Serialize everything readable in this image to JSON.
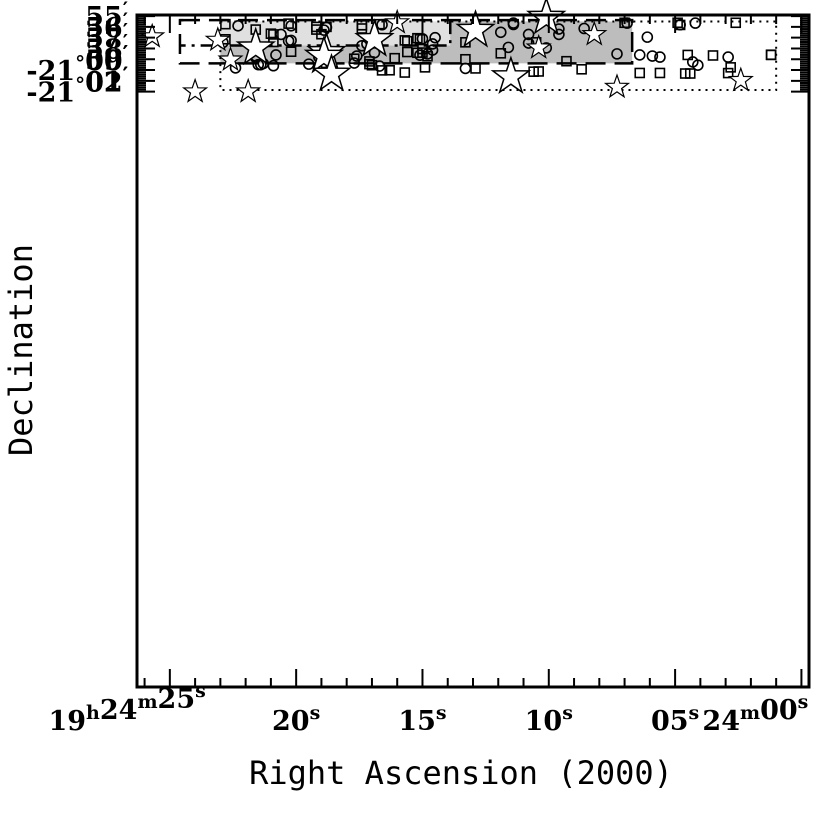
{
  "chart_data": {
    "type": "scatter",
    "xlabel": "Right Ascension (2000)",
    "ylabel": "Declination",
    "xlim": [
      26.3,
      -0.3
    ],
    "ylim": [
      62.15,
      -0.1
    ],
    "x_ticks": [
      {
        "value": 25,
        "h": "19",
        "m": "24",
        "s": "25"
      },
      {
        "value": 20,
        "s": "20"
      },
      {
        "value": 15,
        "s": "15"
      },
      {
        "value": 10,
        "s": "10"
      },
      {
        "value": 5,
        "s": "05"
      },
      {
        "value": 0,
        "m": "24",
        "s": "00"
      }
    ],
    "x_units": {
      "h": "h",
      "m": "m",
      "s": "s"
    },
    "y_ticks": [
      {
        "value": 0,
        "label": "55"
      },
      {
        "value": 1,
        "label": "56"
      },
      {
        "value": 2,
        "label": "57"
      },
      {
        "value": 3,
        "label": "58"
      },
      {
        "value": 4,
        "label": "59"
      },
      {
        "value": 5,
        "deg": "-21",
        "label": "00"
      },
      {
        "value": 6,
        "label": "01"
      },
      {
        "value": 7,
        "deg": "-21",
        "label": "02"
      }
    ],
    "y_units": {
      "deg": "°",
      "min": "′"
    },
    "regions": [
      {
        "name": "dark",
        "x": [
          23.0,
          6.7
        ],
        "y": [
          0.5,
          4.38
        ],
        "fill": "#bdbdbd",
        "edges": "dashed"
      },
      {
        "name": "light",
        "x": [
          23.0,
          13.9
        ],
        "y": [
          0.5,
          2.73
        ],
        "fill": "#e0e0e0",
        "edges": "dashdot"
      }
    ],
    "outlines": [
      {
        "name": "dashed",
        "x": [
          24.6,
          6.7
        ],
        "y": [
          0.38,
          4.38
        ],
        "style": "dashed"
      },
      {
        "name": "dotted",
        "x": [
          23.0,
          1.0
        ],
        "y": [
          0.5,
          6.85
        ],
        "style": "dotted"
      }
    ],
    "series": [
      {
        "marker": "circle",
        "points": [
          [
            22.3,
            0.9
          ],
          [
            20.2,
            0.9
          ],
          [
            18.8,
            1.05
          ],
          [
            18.9,
            1.3
          ],
          [
            16.6,
            0.8
          ],
          [
            11.4,
            0.65
          ],
          [
            11.4,
            0.78
          ],
          [
            4.2,
            0.65
          ],
          [
            6.9,
            0.65
          ],
          [
            4.8,
            0.8
          ],
          [
            9.6,
            1.2
          ],
          [
            8.6,
            1.15
          ],
          [
            11.9,
            1.5
          ],
          [
            10.8,
            1.7
          ],
          [
            9.6,
            1.7
          ],
          [
            6.1,
            1.95
          ],
          [
            20.6,
            1.7
          ],
          [
            20.3,
            2.3
          ],
          [
            20.2,
            2.25
          ],
          [
            15.0,
            2.1
          ],
          [
            14.5,
            2.0
          ],
          [
            14.6,
            2.58
          ],
          [
            17.2,
            2.58
          ],
          [
            17.4,
            2.75
          ],
          [
            22.9,
            2.45
          ],
          [
            10.8,
            2.5
          ],
          [
            11.6,
            2.9
          ],
          [
            10.1,
            2.95
          ],
          [
            14.6,
            3.15
          ],
          [
            15.1,
            3.62
          ],
          [
            14.8,
            3.5
          ],
          [
            16.9,
            3.4
          ],
          [
            21.6,
            3.7
          ],
          [
            20.8,
            3.6
          ],
          [
            19.1,
            3.8
          ],
          [
            17.6,
            3.7
          ],
          [
            7.3,
            3.5
          ],
          [
            6.4,
            3.6
          ],
          [
            5.6,
            3.8
          ],
          [
            5.9,
            3.7
          ],
          [
            2.9,
            3.8
          ],
          [
            21.6,
            3.85
          ],
          [
            21.3,
            4.4
          ],
          [
            21.4,
            4.5
          ],
          [
            21.5,
            4.5
          ],
          [
            20.9,
            4.6
          ],
          [
            22.4,
            4.8
          ],
          [
            19.5,
            4.45
          ],
          [
            18.9,
            4.3
          ],
          [
            17.7,
            4.35
          ],
          [
            16.7,
            4.63
          ],
          [
            13.3,
            4.85
          ],
          [
            4.3,
            4.25
          ],
          [
            4.1,
            4.55
          ]
        ]
      },
      {
        "marker": "square",
        "points": [
          [
            22.8,
            0.75
          ],
          [
            20.3,
            0.7
          ],
          [
            17.4,
            0.85
          ],
          [
            16.7,
            0.75
          ],
          [
            17.4,
            0.85
          ],
          [
            7.0,
            0.62
          ],
          [
            4.9,
            0.62
          ],
          [
            2.6,
            0.62
          ],
          [
            4.8,
            0.82
          ],
          [
            19.2,
            1.0
          ],
          [
            18.8,
            1.0
          ],
          [
            17.4,
            1.15
          ],
          [
            21.6,
            1.25
          ],
          [
            19.2,
            1.25
          ],
          [
            20.9,
            1.7
          ],
          [
            21.0,
            1.63
          ],
          [
            19.0,
            1.68
          ],
          [
            15.2,
            2.05
          ],
          [
            15.1,
            2.15
          ],
          [
            15.7,
            2.25
          ],
          [
            15.6,
            2.33
          ],
          [
            22.8,
            2.15
          ],
          [
            20.9,
            2.4
          ],
          [
            13.3,
            2.43
          ],
          [
            10.5,
            2.43
          ],
          [
            20.2,
            3.3
          ],
          [
            15.6,
            3.33
          ],
          [
            15.2,
            3.4
          ],
          [
            15.0,
            3.05
          ],
          [
            15.0,
            3.38
          ],
          [
            11.9,
            3.45
          ],
          [
            3.5,
            3.65
          ],
          [
            1.2,
            3.6
          ],
          [
            4.5,
            3.6
          ],
          [
            14.8,
            3.72
          ],
          [
            16.1,
            3.9
          ],
          [
            17.7,
            3.95
          ],
          [
            17.1,
            4.2
          ],
          [
            13.3,
            4.0
          ],
          [
            9.3,
            4.18
          ],
          [
            17.1,
            4.45
          ],
          [
            17.0,
            4.55
          ],
          [
            14.9,
            4.75
          ],
          [
            12.9,
            4.85
          ],
          [
            16.3,
            5.02
          ],
          [
            16.6,
            5.03
          ],
          [
            15.7,
            5.23
          ],
          [
            10.6,
            5.15
          ],
          [
            10.4,
            5.13
          ],
          [
            8.7,
            4.93
          ],
          [
            6.4,
            5.27
          ],
          [
            5.6,
            5.27
          ],
          [
            4.4,
            5.32
          ],
          [
            4.6,
            5.32
          ],
          [
            2.9,
            5.28
          ],
          [
            2.8,
            4.75
          ],
          [
            1.2,
            3.58
          ]
        ]
      },
      {
        "marker": "star-large",
        "points": [
          [
            10.1,
            0.12
          ],
          [
            12.9,
            1.32
          ],
          [
            16.9,
            2.18
          ],
          [
            21.6,
            2.95
          ],
          [
            18.8,
            3.38
          ],
          [
            18.9,
            3.72
          ],
          [
            18.6,
            5.38
          ],
          [
            11.5,
            5.62
          ]
        ]
      },
      {
        "marker": "star-small",
        "points": [
          [
            16.0,
            0.6
          ],
          [
            25.7,
            1.9
          ],
          [
            23.1,
            2.22
          ],
          [
            8.2,
            1.7
          ],
          [
            10.4,
            2.93
          ],
          [
            22.6,
            4.05
          ],
          [
            2.4,
            5.95
          ],
          [
            7.3,
            6.58
          ],
          [
            24.0,
            7.0
          ],
          [
            21.9,
            7.0
          ]
        ]
      }
    ]
  }
}
